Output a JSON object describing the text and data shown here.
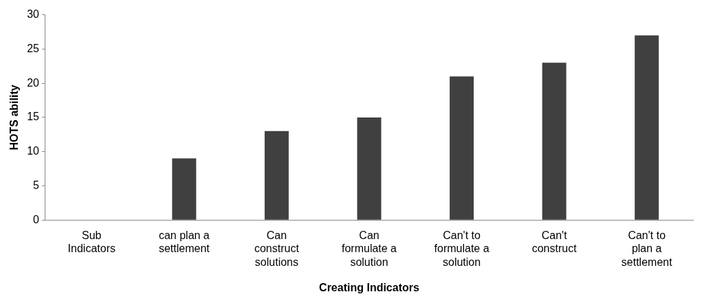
{
  "chart_data": {
    "type": "bar",
    "xlabel": "Creating Indicators",
    "ylabel": "HOTS ability",
    "categories": [
      "Sub Indicators",
      "can plan a settlement",
      "Can construct solutions",
      "Can formulate a solution",
      "Can't to formulate a solution",
      "Can't construct",
      "Can't to plan a settlement"
    ],
    "values": [
      null,
      9,
      13,
      15,
      21,
      23,
      27
    ],
    "color": "#404040",
    "ylim": [
      0,
      30
    ],
    "yticks": [
      0,
      5,
      10,
      15,
      20,
      25,
      30
    ],
    "grid": false,
    "legend": false
  }
}
